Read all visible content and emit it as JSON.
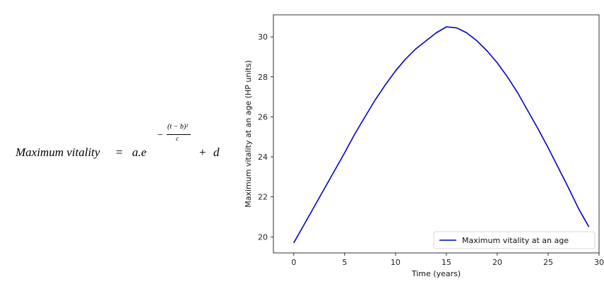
{
  "formula": {
    "lhs": "Maximum vitality",
    "equals": "=",
    "base": "a.e",
    "exp_sign": "−",
    "exp_numerator": "(t − b)²",
    "exp_denominator": "c",
    "plus": "+",
    "constant": "d"
  },
  "chart_data": {
    "type": "line",
    "title": "",
    "xlabel": "Time (years)",
    "ylabel": "Maximum vitality at an age (HP units)",
    "xlim": [
      -2,
      30
    ],
    "ylim": [
      19.2,
      31.1
    ],
    "xticks": [
      0,
      5,
      10,
      15,
      20,
      25,
      30
    ],
    "yticks": [
      20,
      22,
      24,
      26,
      28,
      30
    ],
    "grid": false,
    "legend_location": "lower-right",
    "series": [
      {
        "name": "Maximum vitality at an age",
        "color": "#0000cc",
        "x": [
          0,
          1,
          2,
          3,
          4,
          5,
          6,
          7,
          8,
          9,
          10,
          11,
          12,
          13,
          14,
          15,
          16,
          17,
          18,
          19,
          20,
          21,
          22,
          23,
          24,
          25,
          26,
          27,
          28,
          29
        ],
        "y": [
          19.7,
          20.6,
          21.5,
          22.4,
          23.3,
          24.2,
          25.15,
          26.0,
          26.85,
          27.6,
          28.3,
          28.9,
          29.4,
          29.8,
          30.2,
          30.5,
          30.45,
          30.2,
          29.8,
          29.3,
          28.7,
          28.0,
          27.2,
          26.3,
          25.4,
          24.45,
          23.45,
          22.45,
          21.4,
          20.5
        ]
      }
    ]
  }
}
